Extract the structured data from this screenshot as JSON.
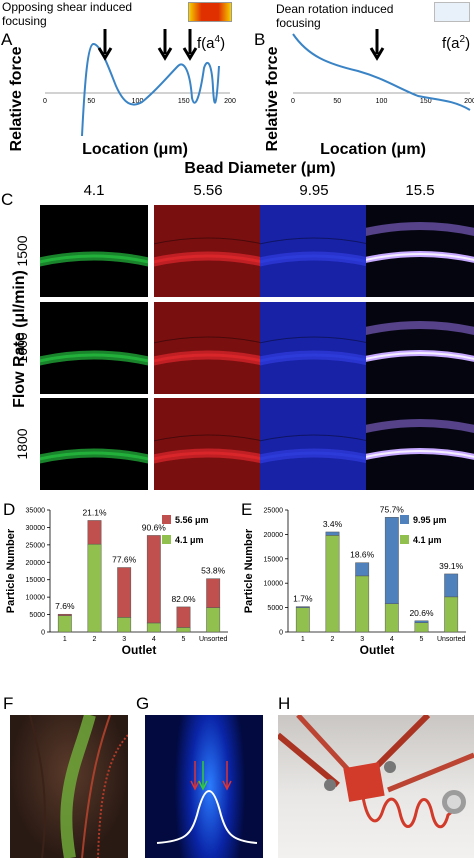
{
  "panel_a": {
    "letter": "A",
    "annotation": "Opposing shear induced focusing",
    "formula_base": "f(a",
    "formula_exp": "4",
    "formula_close": ")",
    "xlabel": "Location (μm)",
    "ylabel": "Relative force",
    "ticks": [
      "0",
      "50",
      "100",
      "150",
      "200"
    ]
  },
  "panel_b": {
    "letter": "B",
    "annotation": "Dean rotation induced focusing",
    "formula_base": "f(a",
    "formula_exp": "2",
    "formula_close": ")",
    "xlabel": "Location (μm)",
    "ylabel": "Relative force",
    "ticks": [
      "0",
      "50",
      "100",
      "150",
      "200"
    ]
  },
  "panel_c": {
    "letter": "C",
    "title": "Bead Diameter (μm)",
    "columns": [
      "4.1",
      "5.56",
      "9.95",
      "15.5"
    ],
    "row_axis": "Flow Rate (μl/min)",
    "rows": [
      "1500",
      "1600",
      "1800"
    ],
    "colors": [
      "#22b03a",
      "#d8262a",
      "#2d3bd9",
      "#c6a9ff"
    ]
  },
  "chart_data": [
    {
      "type": "bar",
      "letter": "D",
      "xlabel": "Outlet",
      "ylabel": "Particle Number",
      "categories": [
        "1",
        "2",
        "3",
        "4",
        "5",
        "Unsorted"
      ],
      "ylim": [
        0,
        35000
      ],
      "yticks": [
        "0",
        "5000",
        "10000",
        "15000",
        "20000",
        "25000",
        "30000",
        "35000"
      ],
      "series": [
        {
          "name": "4.1 μm",
          "color": "#92c04e",
          "values": [
            4700,
            25200,
            4200,
            2600,
            1300,
            7000
          ]
        },
        {
          "name": "5.56 μm",
          "color": "#c0504d",
          "values": [
            400,
            6800,
            14300,
            25100,
            5900,
            8300
          ]
        }
      ],
      "labels": [
        "7.6%",
        "21.1%",
        "77.6%",
        "90.6%",
        "82.0%",
        "53.8%"
      ]
    },
    {
      "type": "bar",
      "letter": "E",
      "xlabel": "Outlet",
      "ylabel": "Particle Number",
      "categories": [
        "1",
        "2",
        "3",
        "4",
        "5",
        "Unsorted"
      ],
      "ylim": [
        0,
        25000
      ],
      "yticks": [
        "0",
        "5000",
        "10000",
        "15000",
        "20000",
        "25000"
      ],
      "series": [
        {
          "name": "4.1 μm",
          "color": "#92c04e",
          "values": [
            5000,
            19800,
            11500,
            5800,
            1900,
            7200
          ]
        },
        {
          "name": "9.95 μm",
          "color": "#4f81bd",
          "values": [
            200,
            700,
            2700,
            17700,
            400,
            4700
          ]
        }
      ],
      "labels": [
        "1.7%",
        "3.4%",
        "18.6%",
        "75.7%",
        "20.6%",
        "39.1%"
      ]
    }
  ],
  "panel_f": {
    "letter": "F"
  },
  "panel_g": {
    "letter": "G"
  },
  "panel_h": {
    "letter": "H"
  }
}
